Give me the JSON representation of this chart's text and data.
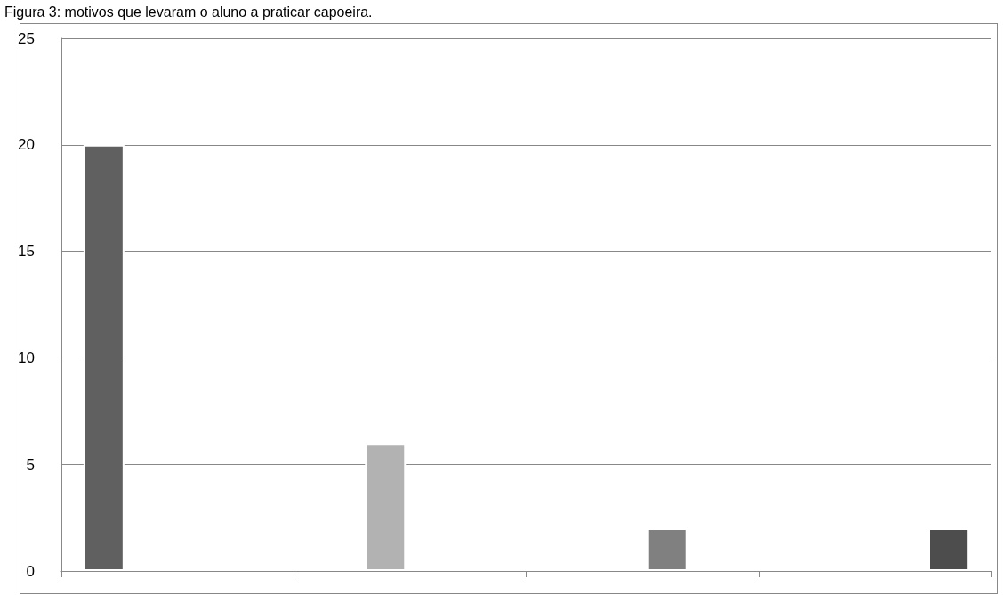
{
  "chart_data": {
    "type": "bar",
    "title": "Figura 3: motivos que levaram o aluno a praticar capoeira.",
    "categories": [
      null,
      null,
      null,
      null
    ],
    "series": [
      {
        "color": "#606060",
        "values": [
          20,
          null,
          null,
          null
        ]
      },
      {
        "color": "#b2b2b2",
        "values": [
          null,
          6,
          null,
          null
        ]
      },
      {
        "color": "#808080",
        "values": [
          null,
          null,
          2,
          null
        ]
      },
      {
        "color": "#4d4d4d",
        "values": [
          null,
          null,
          null,
          2
        ]
      }
    ],
    "ylim": [
      0,
      25
    ],
    "yticks": [
      0,
      5,
      10,
      15,
      20,
      25
    ],
    "grid": "y"
  }
}
